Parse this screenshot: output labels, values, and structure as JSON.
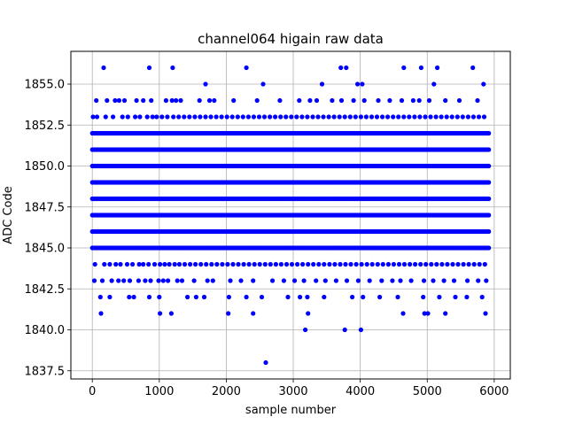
{
  "chart_data": {
    "type": "scatter",
    "title": "channel064 higain raw data",
    "xlabel": "sample number",
    "ylabel": "ADC Code",
    "xlim": [
      -320,
      6240
    ],
    "ylim": [
      1837.0,
      1857.0
    ],
    "xticks": [
      0,
      1000,
      2000,
      3000,
      4000,
      5000,
      6000
    ],
    "xtick_labels": [
      "0",
      "1000",
      "2000",
      "3000",
      "4000",
      "5000",
      "6000"
    ],
    "yticks": [
      1837.5,
      1840.0,
      1842.5,
      1845.0,
      1847.5,
      1850.0,
      1852.5,
      1855.0
    ],
    "ytick_labels": [
      "1837.5",
      "1840.0",
      "1842.5",
      "1845.0",
      "1847.5",
      "1850.0",
      "1852.5",
      "1855.0"
    ],
    "grid": true,
    "marker_color": "#0000ff",
    "n_samples": 5920,
    "series": [
      {
        "levels": [
          {
            "adc": 1844,
            "x": [
              40,
              180,
              260,
              350,
              420,
              520,
              600,
              700,
              760,
              840,
              930,
              1010,
              1080,
              1150,
              1230,
              1300,
              1380,
              1460,
              1540,
              1620,
              1700,
              1780,
              1860,
              1940,
              2020,
              2100,
              2180,
              2260,
              2340,
              2420,
              2500,
              2580,
              2660,
              2740,
              2820,
              2900,
              2980,
              3060,
              3140,
              3220,
              3300,
              3380,
              3460,
              3540,
              3620,
              3700,
              3780,
              3860,
              3940,
              4020,
              4100,
              4180,
              4260,
              4340,
              4420,
              4500,
              4580,
              4660,
              4740,
              4820,
              4900,
              4980,
              5060,
              5140,
              5220,
              5300,
              5380,
              5460,
              5540,
              5620,
              5700,
              5780,
              5860
            ]
          },
          {
            "adc": 1853,
            "x": [
              10,
              70,
              200,
              310,
              450,
              530,
              640,
              710,
              820,
              900,
              960,
              1040,
              1120,
              1210,
              1290,
              1370,
              1450,
              1530,
              1610,
              1690,
              1770,
              1850,
              1930,
              2010,
              2090,
              2170,
              2250,
              2330,
              2410,
              2490,
              2570,
              2650,
              2730,
              2810,
              2890,
              2970,
              3050,
              3130,
              3210,
              3290,
              3370,
              3450,
              3530,
              3610,
              3690,
              3770,
              3850,
              3930,
              4010,
              4090,
              4170,
              4250,
              4330,
              4410,
              4490,
              4570,
              4650,
              4730,
              4810,
              4890,
              4970,
              5050,
              5130,
              5210,
              5290,
              5370,
              5450,
              5530,
              5610,
              5690,
              5770,
              5850
            ]
          },
          {
            "adc": 1843,
            "x": [
              30,
              150,
              290,
              390,
              470,
              560,
              690,
              790,
              870,
              990,
              1060,
              1130,
              1270,
              1340,
              1520,
              1720,
              1800,
              2060,
              2220,
              2400,
              2690,
              2860,
              3020,
              3160,
              3340,
              3480,
              3640,
              3800,
              3970,
              4140,
              4320,
              4480,
              4600,
              4760,
              4950,
              5090,
              5250,
              5400,
              5600,
              5760,
              5880
            ]
          },
          {
            "adc": 1854,
            "x": [
              60,
              220,
              340,
              400,
              480,
              660,
              760,
              880,
              1100,
              1190,
              1250,
              1320,
              1600,
              1750,
              1820,
              2110,
              2460,
              2800,
              3090,
              3250,
              3350,
              3580,
              3720,
              3900,
              4060,
              4270,
              4440,
              4620,
              4790,
              4880,
              5030,
              5270,
              5480,
              5750
            ]
          },
          {
            "adc": 1842,
            "x": [
              120,
              260,
              550,
              620,
              850,
              1000,
              1420,
              1550,
              1670,
              2040,
              2300,
              2530,
              2920,
              3100,
              3210,
              3460,
              3880,
              4040,
              4290,
              4560,
              4940,
              5180,
              5420,
              5590,
              5820
            ]
          },
          {
            "adc": 1855,
            "x": [
              1690,
              2550,
              3430,
              3960,
              4030,
              5100,
              5840
            ]
          },
          {
            "adc": 1856,
            "x": [
              170,
              850,
              1200,
              2300,
              3710,
              3790,
              4650,
              4910,
              5150,
              5680
            ]
          },
          {
            "adc": 1841,
            "x": [
              130,
              1010,
              1180,
              2030,
              2400,
              3220,
              4640,
              4960,
              5010,
              5270,
              5870
            ]
          },
          {
            "adc": 1840,
            "x": [
              3180,
              3770,
              4010
            ]
          },
          {
            "adc": 1838,
            "x": [
              2590
            ]
          }
        ],
        "dense_levels": [
          1845,
          1846,
          1847,
          1848,
          1849,
          1850,
          1851,
          1852
        ]
      }
    ]
  }
}
